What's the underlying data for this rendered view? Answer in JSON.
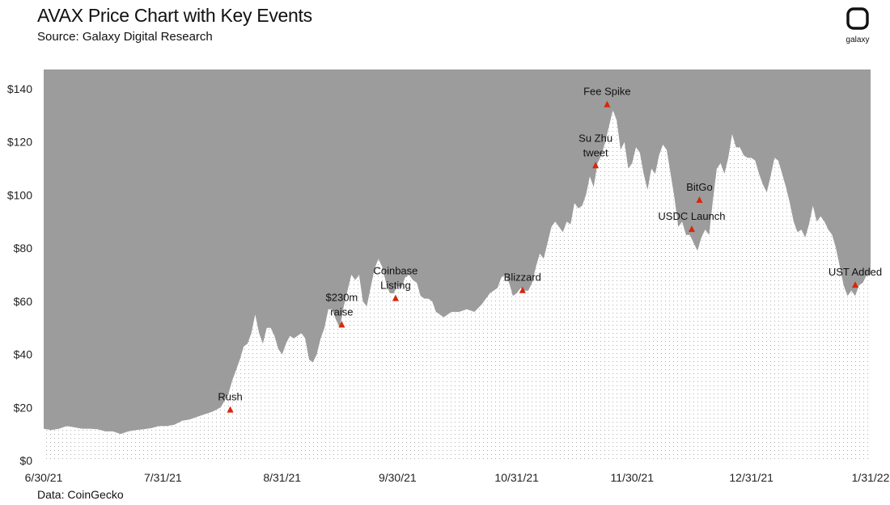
{
  "header": {
    "title": "AVAX Price Chart with Key Events",
    "subtitle": "Source: Galaxy Digital Research"
  },
  "logo": {
    "text": "galaxy"
  },
  "footer": {
    "source": "Data: CoinGecko"
  },
  "colors": {
    "background_fill": "#9c9c9c",
    "area_fill": "#ffffff",
    "dot": "#9a9a9a",
    "marker": "#d9260b"
  },
  "chart_data": {
    "type": "area",
    "title": "AVAX Price Chart with Key Events",
    "xlabel": "",
    "ylabel": "",
    "ylim": [
      0,
      140
    ],
    "yticks": [
      0,
      20,
      40,
      60,
      80,
      100,
      120,
      140
    ],
    "ytick_labels": [
      "$0",
      "$20",
      "$40",
      "$60",
      "$80",
      "$100",
      "$120",
      "$140"
    ],
    "xlim_days": [
      0,
      215
    ],
    "xticks": [
      {
        "label": "6/30/21",
        "day": 0
      },
      {
        "label": "7/31/21",
        "day": 31
      },
      {
        "label": "8/31/21",
        "day": 62
      },
      {
        "label": "9/30/21",
        "day": 92
      },
      {
        "label": "10/31/21",
        "day": 123
      },
      {
        "label": "11/30/21",
        "day": 153
      },
      {
        "label": "12/31/21",
        "day": 184
      },
      {
        "label": "1/31/22",
        "day": 215
      }
    ],
    "series": [
      {
        "name": "AVAX price (USD)",
        "points": [
          [
            0,
            12
          ],
          [
            2,
            11.5
          ],
          [
            4,
            12
          ],
          [
            6,
            13
          ],
          [
            8,
            12.5
          ],
          [
            10,
            12
          ],
          [
            12,
            12
          ],
          [
            14,
            11.8
          ],
          [
            16,
            11
          ],
          [
            18,
            11
          ],
          [
            20,
            10
          ],
          [
            22,
            11
          ],
          [
            24,
            11.5
          ],
          [
            26,
            11.8
          ],
          [
            28,
            12.2
          ],
          [
            30,
            13
          ],
          [
            32,
            13
          ],
          [
            34,
            13.5
          ],
          [
            36,
            15
          ],
          [
            38,
            15.5
          ],
          [
            40,
            16.5
          ],
          [
            42,
            17.5
          ],
          [
            44,
            18.5
          ],
          [
            46,
            20
          ],
          [
            48,
            25
          ],
          [
            49,
            30
          ],
          [
            50,
            34
          ],
          [
            51,
            38
          ],
          [
            52,
            43
          ],
          [
            53,
            44
          ],
          [
            54,
            48
          ],
          [
            55,
            55
          ],
          [
            56,
            48
          ],
          [
            57,
            44
          ],
          [
            58,
            50
          ],
          [
            59,
            50
          ],
          [
            60,
            47
          ],
          [
            61,
            42
          ],
          [
            62,
            40
          ],
          [
            63,
            44
          ],
          [
            64,
            47
          ],
          [
            65,
            46
          ],
          [
            66,
            47
          ],
          [
            67,
            48
          ],
          [
            68,
            46
          ],
          [
            69,
            38
          ],
          [
            70,
            37
          ],
          [
            71,
            40
          ],
          [
            72,
            46
          ],
          [
            73,
            50
          ],
          [
            74,
            57
          ],
          [
            75,
            57
          ],
          [
            76,
            53
          ],
          [
            77,
            50
          ],
          [
            78,
            58
          ],
          [
            79,
            64
          ],
          [
            80,
            70
          ],
          [
            81,
            68
          ],
          [
            82,
            70
          ],
          [
            83,
            60
          ],
          [
            84,
            58
          ],
          [
            85,
            65
          ],
          [
            86,
            72
          ],
          [
            87,
            76
          ],
          [
            88,
            73
          ],
          [
            89,
            67
          ],
          [
            90,
            63
          ],
          [
            91,
            63
          ],
          [
            92,
            66
          ],
          [
            93,
            65
          ],
          [
            94,
            69
          ],
          [
            95,
            70
          ],
          [
            96,
            68
          ],
          [
            97,
            67
          ],
          [
            98,
            62
          ],
          [
            99,
            61
          ],
          [
            100,
            61
          ],
          [
            101,
            60
          ],
          [
            102,
            56
          ],
          [
            103,
            55
          ],
          [
            104,
            54
          ],
          [
            106,
            56
          ],
          [
            108,
            56
          ],
          [
            110,
            57
          ],
          [
            112,
            56
          ],
          [
            114,
            59
          ],
          [
            116,
            63
          ],
          [
            118,
            65
          ],
          [
            119,
            69
          ],
          [
            120,
            70
          ],
          [
            121,
            67
          ],
          [
            122,
            62
          ],
          [
            123,
            63
          ],
          [
            124,
            65
          ],
          [
            125,
            64
          ],
          [
            126,
            64
          ],
          [
            127,
            67
          ],
          [
            128,
            73
          ],
          [
            129,
            78
          ],
          [
            130,
            76
          ],
          [
            131,
            82
          ],
          [
            132,
            88
          ],
          [
            133,
            90
          ],
          [
            134,
            88
          ],
          [
            135,
            86
          ],
          [
            136,
            90
          ],
          [
            137,
            89
          ],
          [
            138,
            97
          ],
          [
            139,
            95
          ],
          [
            140,
            96
          ],
          [
            141,
            100
          ],
          [
            142,
            107
          ],
          [
            143,
            103
          ],
          [
            144,
            112
          ],
          [
            145,
            115
          ],
          [
            146,
            120
          ],
          [
            147,
            126
          ],
          [
            148,
            132
          ],
          [
            149,
            128
          ],
          [
            150,
            117
          ],
          [
            151,
            120
          ],
          [
            152,
            110
          ],
          [
            153,
            112
          ],
          [
            154,
            118
          ],
          [
            155,
            116
          ],
          [
            156,
            108
          ],
          [
            157,
            102
          ],
          [
            158,
            110
          ],
          [
            159,
            108
          ],
          [
            160,
            115
          ],
          [
            161,
            119
          ],
          [
            162,
            117
          ],
          [
            163,
            108
          ],
          [
            164,
            99
          ],
          [
            165,
            88
          ],
          [
            166,
            90
          ],
          [
            167,
            85
          ],
          [
            168,
            85
          ],
          [
            169,
            82
          ],
          [
            170,
            79
          ],
          [
            171,
            84
          ],
          [
            172,
            87
          ],
          [
            173,
            85
          ],
          [
            174,
            98
          ],
          [
            175,
            110
          ],
          [
            176,
            112
          ],
          [
            177,
            108
          ],
          [
            178,
            114
          ],
          [
            179,
            123
          ],
          [
            180,
            118
          ],
          [
            181,
            118
          ],
          [
            182,
            115
          ],
          [
            183,
            114
          ],
          [
            184,
            114
          ],
          [
            185,
            113
          ],
          [
            186,
            108
          ],
          [
            187,
            104
          ],
          [
            188,
            101
          ],
          [
            189,
            107
          ],
          [
            190,
            114
          ],
          [
            191,
            113
          ],
          [
            192,
            108
          ],
          [
            193,
            103
          ],
          [
            194,
            97
          ],
          [
            195,
            90
          ],
          [
            196,
            86
          ],
          [
            197,
            87
          ],
          [
            198,
            84
          ],
          [
            199,
            89
          ],
          [
            200,
            96
          ],
          [
            201,
            90
          ],
          [
            202,
            92
          ],
          [
            203,
            90
          ],
          [
            204,
            87
          ],
          [
            205,
            85
          ],
          [
            206,
            80
          ],
          [
            207,
            73
          ],
          [
            208,
            66
          ],
          [
            209,
            62
          ],
          [
            210,
            64
          ],
          [
            211,
            62
          ],
          [
            212,
            66
          ],
          [
            213,
            67
          ],
          [
            214,
            70
          ],
          [
            215,
            70
          ]
        ]
      }
    ],
    "annotations": [
      {
        "label": "Rush",
        "day": 48.5,
        "value": 19
      },
      {
        "label": "$230m\nraise",
        "day": 77.5,
        "value": 51
      },
      {
        "label": "Coinbase\nListing",
        "day": 91.5,
        "value": 61
      },
      {
        "label": "Blizzard",
        "day": 124.5,
        "value": 64
      },
      {
        "label": "Su Zhu\ntweet",
        "day": 143.5,
        "value": 111
      },
      {
        "label": "Fee Spike",
        "day": 146.5,
        "value": 134
      },
      {
        "label": "BitGo",
        "day": 170.5,
        "value": 98
      },
      {
        "label": "USDC Launch",
        "day": 168.5,
        "value": 87
      },
      {
        "label": "UST Added",
        "day": 211,
        "value": 66
      }
    ]
  }
}
